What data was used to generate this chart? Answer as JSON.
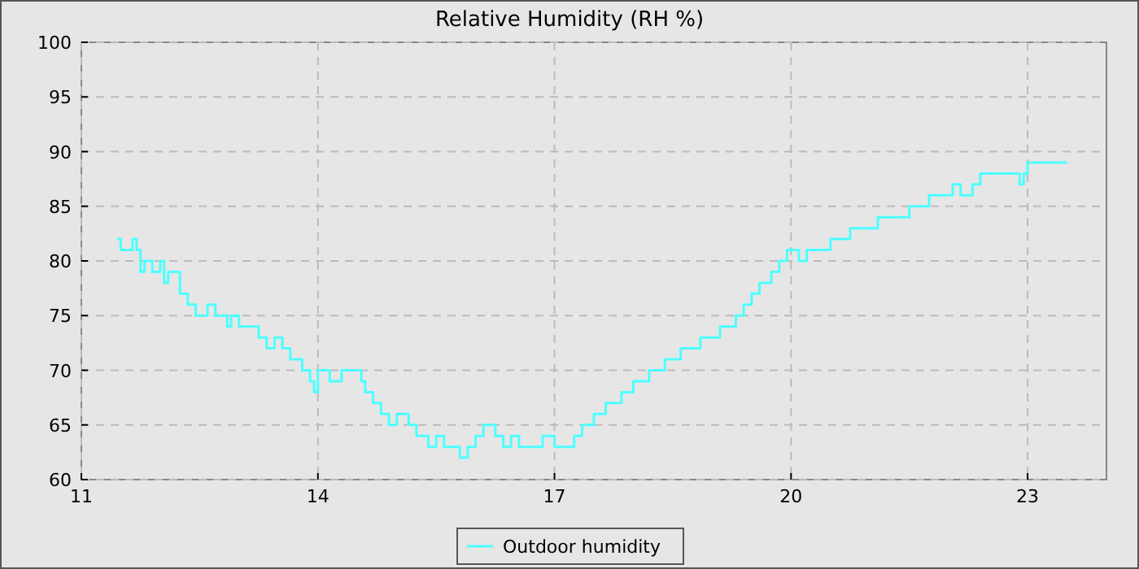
{
  "chart_data": {
    "type": "step",
    "title": "Relative Humidity (RH %)",
    "xlim": [
      11,
      24
    ],
    "xticks": [
      11,
      14,
      17,
      20,
      23
    ],
    "ylim": [
      60,
      100
    ],
    "yticks": [
      60,
      65,
      70,
      75,
      80,
      85,
      90,
      95,
      100
    ],
    "grid": true,
    "legend": "bottom",
    "marker": "none",
    "series": [
      {
        "name": "Outdoor humidity",
        "color": "#4dffff",
        "x": [
          11.45,
          11.5,
          11.65,
          11.7,
          11.75,
          11.8,
          11.9,
          12.0,
          12.05,
          12.1,
          12.25,
          12.35,
          12.45,
          12.6,
          12.7,
          12.85,
          12.9,
          13.0,
          13.25,
          13.35,
          13.45,
          13.55,
          13.65,
          13.8,
          13.9,
          13.95,
          14.0,
          14.15,
          14.3,
          14.55,
          14.6,
          14.7,
          14.8,
          14.9,
          15.0,
          15.15,
          15.25,
          15.4,
          15.5,
          15.6,
          15.8,
          15.9,
          16.0,
          16.1,
          16.25,
          16.35,
          16.45,
          16.55,
          16.85,
          17.0,
          17.25,
          17.35,
          17.5,
          17.65,
          17.85,
          18.0,
          18.2,
          18.4,
          18.6,
          18.85,
          19.1,
          19.3,
          19.4,
          19.5,
          19.6,
          19.75,
          19.85,
          19.95,
          20.1,
          20.2,
          20.5,
          20.75,
          21.1,
          21.5,
          21.75,
          22.05,
          22.15,
          22.3,
          22.4,
          22.9,
          22.95,
          23.0,
          23.5
        ],
        "values": [
          82,
          81,
          82,
          81,
          79,
          80,
          79,
          80,
          78,
          79,
          77,
          76,
          75,
          76,
          75,
          74,
          75,
          74,
          73,
          72,
          73,
          72,
          71,
          70,
          69,
          68,
          70,
          69,
          70,
          69,
          68,
          67,
          66,
          65,
          66,
          65,
          64,
          63,
          64,
          63,
          62,
          63,
          64,
          65,
          64,
          63,
          64,
          63,
          64,
          63,
          64,
          65,
          66,
          67,
          68,
          69,
          70,
          71,
          72,
          73,
          74,
          75,
          76,
          77,
          78,
          79,
          80,
          81,
          80,
          81,
          82,
          83,
          84,
          85,
          86,
          87,
          86,
          87,
          88,
          87,
          88,
          89,
          89
        ]
      }
    ]
  }
}
